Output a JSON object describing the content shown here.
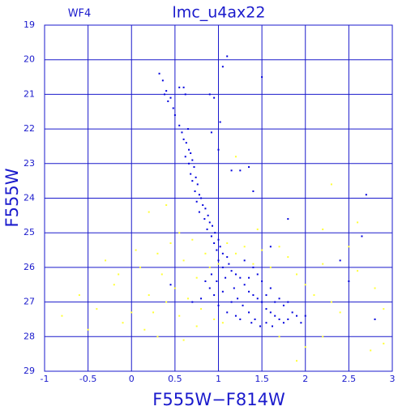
{
  "chart_data": {
    "type": "scatter",
    "title": "lmc_u4ax22",
    "subtitle": "WF4",
    "x_label": "F555W−F814W",
    "y_label": "F555W",
    "xlim": [
      -1,
      3
    ],
    "xticks": [
      -1,
      -0.5,
      0,
      0.5,
      1,
      1.5,
      2,
      2.5,
      3
    ],
    "ylim": [
      29,
      19
    ],
    "yticks": [
      19,
      20,
      21,
      22,
      23,
      24,
      25,
      26,
      27,
      28,
      29
    ],
    "grid": true,
    "grid_color": "#1a1acc",
    "series": [
      {
        "color": "#ffff33",
        "x": [
          -0.8,
          -0.6,
          -0.4,
          -0.2,
          -0.1,
          0.1,
          0.15,
          0.2,
          0.25,
          0.3,
          0.35,
          0.4,
          0.45,
          0.5,
          0.55,
          0.6,
          0.65,
          0.7,
          0.75,
          0.8,
          0.85,
          0.9,
          0.95,
          1.0,
          1.05,
          1.1,
          1.2,
          1.3,
          1.4,
          1.5,
          1.6,
          1.7,
          1.8,
          1.9,
          2.0,
          2.1,
          2.2,
          2.3,
          2.4,
          2.5,
          2.6,
          2.8,
          2.9,
          2.2,
          2.0,
          1.7,
          2.3,
          2.6,
          2.2,
          0.4,
          0.2,
          -0.3,
          0.05,
          -0.5,
          0.3,
          0.6,
          2.9,
          2.75,
          1.9,
          0.0,
          -0.15,
          0.55,
          1.45,
          0.75,
          1.2
        ],
        "values": [
          27.4,
          26.8,
          27.2,
          26.5,
          27.6,
          26.0,
          27.8,
          26.8,
          27.3,
          25.6,
          26.2,
          27.0,
          25.3,
          26.6,
          27.4,
          25.8,
          26.9,
          25.2,
          26.3,
          27.2,
          25.6,
          26.0,
          27.5,
          25.9,
          27.6,
          25.3,
          25.6,
          25.4,
          25.9,
          25.5,
          26.0,
          25.4,
          25.7,
          26.2,
          26.5,
          26.8,
          25.9,
          27.0,
          27.3,
          25.4,
          26.1,
          26.6,
          27.2,
          28.0,
          28.3,
          28.0,
          23.6,
          24.7,
          24.9,
          24.2,
          24.4,
          25.8,
          25.5,
          27.8,
          28.0,
          28.1,
          28.2,
          28.4,
          28.7,
          27.3,
          26.2,
          25.0,
          24.9,
          27.7,
          22.8
        ]
      },
      {
        "color": "#0000dd",
        "x": [
          0.32,
          0.36,
          0.38,
          0.4,
          0.42,
          0.45,
          0.48,
          0.5,
          0.55,
          0.6,
          0.62,
          0.55,
          0.58,
          0.6,
          0.63,
          0.65,
          0.66,
          0.68,
          0.7,
          0.62,
          0.66,
          0.72,
          0.68,
          0.74,
          0.7,
          0.76,
          0.73,
          0.78,
          0.8,
          0.75,
          0.82,
          0.85,
          0.78,
          0.88,
          0.84,
          0.9,
          0.93,
          0.87,
          0.96,
          0.92,
          1.0,
          0.95,
          1.02,
          0.98,
          1.05,
          1.1,
          1.0,
          1.12,
          1.05,
          1.15,
          1.2,
          1.08,
          1.25,
          1.3,
          1.18,
          1.35,
          1.4,
          1.22,
          1.45,
          1.5,
          1.28,
          1.55,
          1.6,
          1.35,
          1.65,
          1.7,
          1.42,
          1.75,
          1.8,
          1.48,
          1.55,
          1.62,
          1.85,
          1.9,
          1.0,
          0.95,
          0.9,
          1.1,
          1.2,
          0.85,
          0.92,
          1.3,
          1.4,
          1.5,
          1.6,
          1.7,
          1.75,
          1.45,
          1.55,
          1.38,
          1.25,
          1.15,
          1.05,
          0.98,
          1.35,
          1.65,
          1.8,
          1.95,
          2.0,
          0.45,
          0.7,
          0.8,
          2.7,
          2.65,
          1.5,
          1.1,
          1.05,
          0.9,
          0.95,
          1.15,
          1.25,
          1.35,
          1.4,
          1.8,
          1.6,
          2.8,
          2.4,
          2.5,
          1.0,
          0.92,
          1.02
        ],
        "values": [
          20.4,
          20.6,
          21.0,
          20.9,
          21.2,
          21.1,
          21.4,
          21.6,
          20.8,
          20.8,
          21.0,
          21.9,
          22.1,
          22.3,
          22.4,
          22.0,
          22.6,
          22.7,
          22.9,
          22.8,
          23.0,
          23.1,
          23.3,
          23.4,
          23.5,
          23.6,
          23.8,
          23.9,
          24.0,
          24.1,
          24.2,
          24.3,
          24.4,
          24.5,
          24.6,
          24.7,
          24.8,
          24.9,
          25.0,
          25.1,
          25.2,
          25.3,
          25.4,
          25.5,
          25.6,
          25.7,
          25.8,
          25.9,
          26.0,
          26.1,
          26.2,
          26.3,
          26.3,
          26.5,
          26.6,
          26.7,
          26.8,
          26.9,
          26.9,
          27.0,
          27.1,
          27.2,
          27.3,
          27.3,
          27.4,
          27.5,
          27.5,
          27.6,
          27.5,
          27.7,
          27.6,
          27.7,
          27.3,
          27.4,
          27.1,
          26.8,
          26.6,
          27.3,
          27.4,
          26.4,
          26.2,
          25.8,
          26.0,
          26.4,
          26.6,
          26.9,
          27.1,
          26.2,
          26.8,
          27.6,
          27.5,
          27.0,
          26.7,
          26.4,
          26.3,
          27.0,
          27.0,
          27.6,
          27.4,
          26.5,
          27.0,
          26.9,
          23.9,
          25.1,
          20.5,
          19.9,
          20.2,
          21.0,
          21.1,
          23.2,
          23.2,
          23.1,
          23.8,
          24.6,
          25.4,
          27.5,
          25.8,
          26.4,
          22.6,
          22.1,
          21.8
        ]
      }
    ]
  }
}
